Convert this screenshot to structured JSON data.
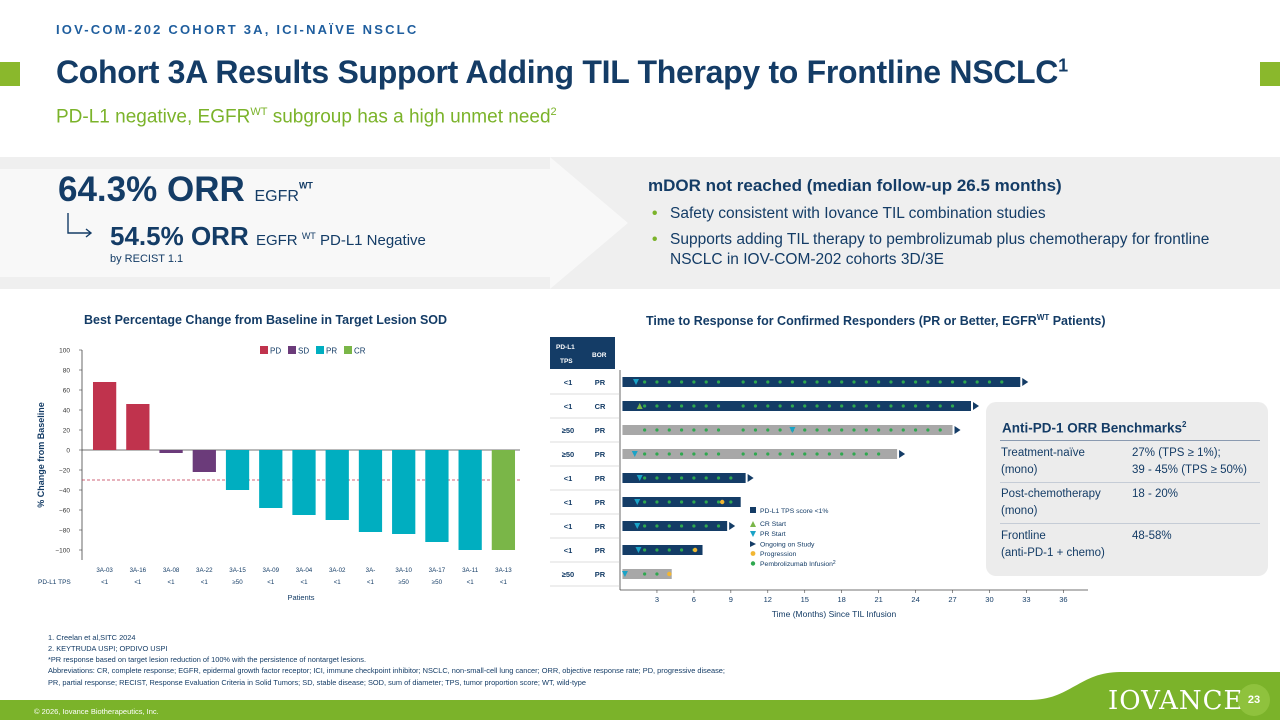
{
  "header": {
    "eyebrow": "IOV-COM-202 COHORT 3A, ICI-NAÏVE NSCLC",
    "title": "Cohort 3A Results Support Adding TIL Therapy to Frontline NSCLC",
    "title_sup": "1",
    "subtitle_pre": "PD-L1 negative, EGFR",
    "subtitle_sup1": "WT",
    "subtitle_post": " subgroup has a high unmet need",
    "subtitle_sup2": "2"
  },
  "summary": {
    "orr_main": "64.3% ORR",
    "orr_main_label": "EGFR",
    "orr_main_sup": "WT",
    "orr_sub": "54.5% ORR",
    "orr_sub_label_pre": "EGFR",
    "orr_sub_sup": "WT",
    "orr_sub_label_post": " PD-L1 Negative",
    "recist": "by RECIST 1.1",
    "mdor": "mDOR not reached (median follow-up 26.5 months)",
    "bullets": [
      "Safety consistent with Iovance TIL combination studies",
      "Supports adding TIL therapy to pembrolizumab plus chemotherapy for frontline NSCLC in IOV-COM-202 cohorts 3D/3E"
    ]
  },
  "waterfall": {
    "title": "Best Percentage Change from Baseline in Target Lesion SOD",
    "ylabel": "% Change from Baseline",
    "xlabel": "Patients",
    "row_label": "PD-L1 TPS",
    "legend": [
      "PD",
      "SD",
      "PR",
      "CR"
    ],
    "colors": {
      "PD": "#c0334d",
      "SD": "#6b3b7a",
      "PR": "#00aec0",
      "CR": "#7ab648"
    },
    "yticks": [
      "100",
      "80",
      "60",
      "40",
      "20",
      "0",
      "−20",
      "−40",
      "−60",
      "−80",
      "−100"
    ]
  },
  "chart_data": [
    {
      "type": "bar",
      "title": "Best Percentage Change from Baseline in Target Lesion SOD",
      "ylabel": "% Change from Baseline",
      "xlabel": "Patients",
      "ylim": [
        -110,
        100
      ],
      "reference_line": -30,
      "categories": [
        "3A-03",
        "3A-16",
        "3A-08",
        "3A-22",
        "3A-15",
        "3A-09",
        "3A-04",
        "3A-02",
        "3A-",
        "3A-10",
        "3A-17",
        "3A-11",
        "3A-13"
      ],
      "values": [
        68,
        46,
        -3,
        -22,
        -40,
        -58,
        -65,
        -70,
        -82,
        -84,
        -92,
        -100,
        -100
      ],
      "bor": [
        "PD",
        "PD",
        "SD",
        "SD",
        "PR",
        "PR",
        "PR",
        "PR",
        "PR",
        "PR",
        "PR",
        "PR",
        "CR"
      ],
      "pdl1_tps": [
        "<1",
        "<1",
        "<1",
        "<1",
        "≥50",
        "<1",
        "<1",
        "<1",
        "<1",
        "≥50",
        "≥50",
        "<1",
        "<1"
      ],
      "legend": [
        "PD",
        "SD",
        "PR",
        "CR"
      ]
    },
    {
      "type": "bar",
      "orientation": "horizontal",
      "title": "Time to Response for Confirmed Responders (PR or Better, EGFRWT Patients)",
      "xlabel": "Time (Months) Since TIL Infusion",
      "xlim": [
        0,
        38
      ],
      "xticks": [
        "3",
        "6",
        "9",
        "12",
        "15",
        "18",
        "21",
        "24",
        "27",
        "30",
        "33",
        "36"
      ],
      "col_headers": [
        "PD-L1 TPS",
        "BOR"
      ],
      "rows": [
        {
          "tps": "<1",
          "bor": "PR",
          "duration": 32.5,
          "ongoing": true,
          "tps_group": "<1",
          "response_month": 1.3
        },
        {
          "tps": "<1",
          "bor": "CR",
          "duration": 28.5,
          "ongoing": true,
          "tps_group": "<1",
          "response_month": 1.6
        },
        {
          "tps": "≥50",
          "bor": "PR",
          "duration": 27.0,
          "ongoing": true,
          "tps_group": "≥50",
          "response_month": 14.0
        },
        {
          "tps": "≥50",
          "bor": "PR",
          "duration": 22.5,
          "ongoing": true,
          "tps_group": "≥50",
          "response_month": 1.2
        },
        {
          "tps": "<1",
          "bor": "PR",
          "duration": 10.2,
          "ongoing": true,
          "tps_group": "<1",
          "response_month": 1.6
        },
        {
          "tps": "<1",
          "bor": "PR",
          "duration": 9.8,
          "ongoing": false,
          "tps_group": "<1",
          "response_month": 1.4,
          "progression": 8.3
        },
        {
          "tps": "<1",
          "bor": "PR",
          "duration": 8.7,
          "ongoing": true,
          "tps_group": "<1",
          "response_month": 1.4
        },
        {
          "tps": "<1",
          "bor": "PR",
          "duration": 6.7,
          "ongoing": false,
          "tps_group": "<1",
          "response_month": 1.5,
          "progression": 6.1
        },
        {
          "tps": "≥50",
          "bor": "PR",
          "duration": 4.2,
          "ongoing": false,
          "tps_group": "≥50",
          "response_month": 0.4,
          "progression": 4.0
        }
      ],
      "legend": [
        "PD-L1 TPS score <1%",
        "CR Start",
        "PR Start",
        "Ongoing on Study",
        "Progression",
        "Pembrolizumab Infusion"
      ],
      "legend_sup": "2"
    }
  ],
  "swimmer": {
    "title": "Time to Response for Confirmed Responders (PR or Better, EGFR",
    "title_sup": "WT",
    "title_post": " Patients)",
    "xlabel": "Time (Months) Since TIL Infusion",
    "col1": "PD-L1 TPS",
    "col2": "BOR",
    "colors": {
      "lt1": "#143c66",
      "ge50": "#a8a8a8",
      "dot": "#2fa84f",
      "pr": "#1aa3c7",
      "cr": "#7ab648",
      "prog": "#f2b632"
    }
  },
  "benchmarks": {
    "title": "Anti-PD-1 ORR Benchmarks",
    "title_sup": "2",
    "rows": [
      {
        "label1": "Treatment-naïve",
        "label2": "(mono)",
        "val1": "27% (TPS ≥ 1%);",
        "val2": "39 - 45% (TPS ≥ 50%)"
      },
      {
        "label1": "Post-chemotherapy",
        "label2": "(mono)",
        "val1": "18 - 20%",
        "val2": ""
      },
      {
        "label1": "Frontline",
        "label2": "(anti-PD-1 + chemo)",
        "val1": "48-58%",
        "val2": ""
      }
    ]
  },
  "footnotes": [
    "1. Creelan et al,SITC 2024",
    "2. KEYTRUDA USPI; OPDIVO USPI",
    "*PR response based on target lesion reduction of 100% with the persistence of nontarget lesions.",
    "Abbreviations: CR, complete response; EGFR, epidermal growth factor receptor; ICI, immune checkpoint inhibitor; NSCLC, non-small-cell lung cancer; ORR, objective response rate; PD, progressive disease;",
    "PR, partial response; RECIST, Response Evaluation Criteria in Solid Tumors; SD, stable disease; SOD, sum of diameter; TPS, tumor proportion score; WT, wild-type"
  ],
  "footer": {
    "copyright": "© 2026, Iovance Biotherapeutics, Inc.",
    "logo": "IOVANCE",
    "page": "23"
  }
}
